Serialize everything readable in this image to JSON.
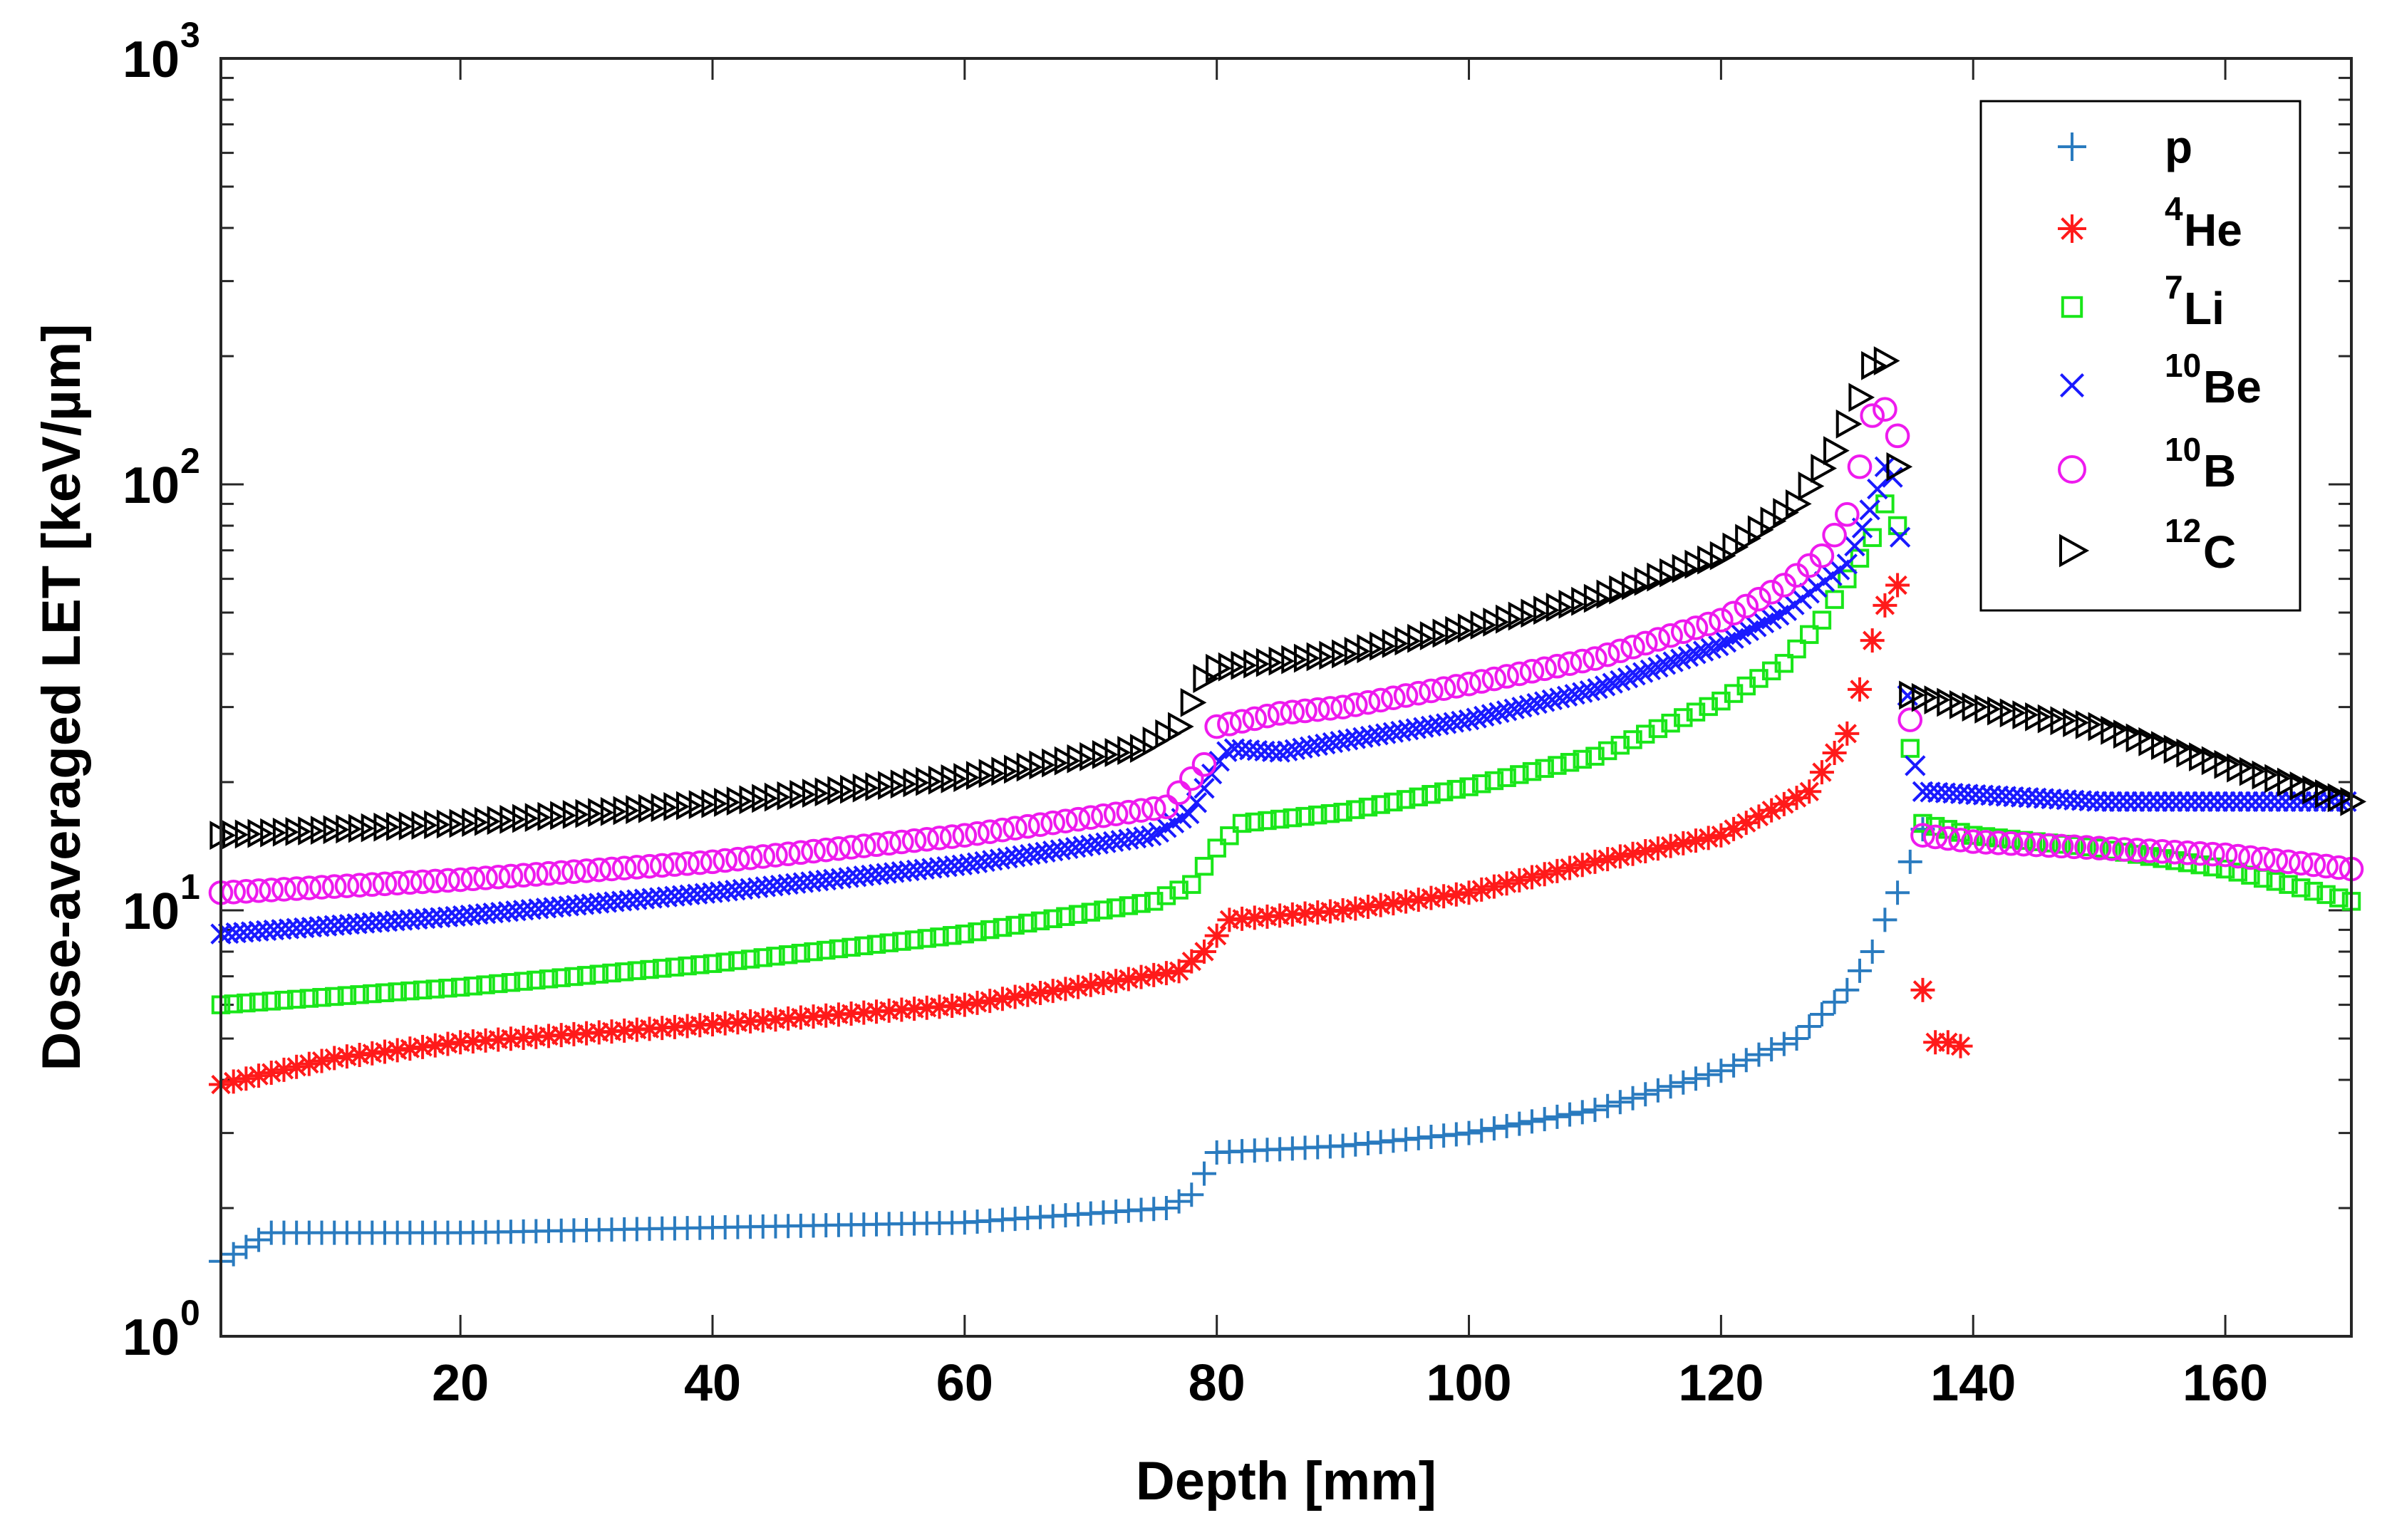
{
  "chart_data": {
    "type": "scatter",
    "title": "",
    "xlabel": "Depth [mm]",
    "ylabel": "Dose-averaged LET [keV/µm]",
    "xlim": [
      1,
      170
    ],
    "ylim": [
      1,
      1000
    ],
    "yscale": "log",
    "xticks": [
      20,
      40,
      60,
      80,
      100,
      120,
      140,
      160
    ],
    "xtick_labels": [
      "20",
      "40",
      "60",
      "80",
      "100",
      "120",
      "140",
      "160"
    ],
    "yticks": [
      {
        "value": 1,
        "base": "10",
        "exp": "0"
      },
      {
        "value": 10,
        "base": "10",
        "exp": "1"
      },
      {
        "value": 100,
        "base": "10",
        "exp": "2"
      },
      {
        "value": 1000,
        "base": "10",
        "exp": "3"
      }
    ],
    "legend_position": "top-right",
    "series": [
      {
        "name": "p",
        "mass": "",
        "element": "p",
        "color": "#2a7bbf",
        "marker": "plus",
        "x_start": 1,
        "x_step": 1,
        "anchors": [
          [
            1,
            1.5
          ],
          [
            5,
            1.75
          ],
          [
            20,
            1.75
          ],
          [
            40,
            1.8
          ],
          [
            60,
            1.85
          ],
          [
            76,
            2.0
          ],
          [
            78,
            2.15
          ],
          [
            80,
            2.7
          ],
          [
            90,
            2.8
          ],
          [
            100,
            3.0
          ],
          [
            110,
            3.4
          ],
          [
            120,
            4.2
          ],
          [
            126,
            5.0
          ],
          [
            130,
            6.5
          ],
          [
            132,
            8.0
          ],
          [
            133,
            9.5
          ],
          [
            134,
            11.0
          ],
          [
            135,
            13.0
          ]
        ],
        "extra_points": [
          [
            136,
            15.5
          ]
        ]
      },
      {
        "name": "⁴He",
        "mass": "4",
        "element": "He",
        "color": "#ff1a1a",
        "marker": "asterisk",
        "x_start": 1,
        "x_step": 1,
        "anchors": [
          [
            1,
            3.9
          ],
          [
            10,
            4.5
          ],
          [
            20,
            4.9
          ],
          [
            40,
            5.4
          ],
          [
            60,
            6.0
          ],
          [
            77,
            7.2
          ],
          [
            79,
            8.0
          ],
          [
            81,
            9.5
          ],
          [
            90,
            10.0
          ],
          [
            100,
            11.0
          ],
          [
            110,
            13.0
          ],
          [
            120,
            15.0
          ],
          [
            127,
            19.0
          ],
          [
            130,
            26.0
          ],
          [
            131,
            33.0
          ],
          [
            132,
            43.0
          ],
          [
            133,
            52.0
          ],
          [
            134,
            58.0
          ]
        ],
        "extra_points": [
          [
            136,
            6.5
          ],
          [
            137,
            4.9
          ],
          [
            138,
            4.9
          ],
          [
            139,
            4.8
          ]
        ]
      },
      {
        "name": "⁷Li",
        "mass": "7",
        "element": "Li",
        "color": "#19e619",
        "marker": "square",
        "x_start": 1,
        "x_step": 1,
        "anchors": [
          [
            1,
            6.0
          ],
          [
            20,
            6.6
          ],
          [
            40,
            7.5
          ],
          [
            60,
            8.8
          ],
          [
            75,
            10.5
          ],
          [
            78,
            11.5
          ],
          [
            80,
            14.0
          ],
          [
            82,
            16.0
          ],
          [
            90,
            17.0
          ],
          [
            100,
            19.5
          ],
          [
            110,
            23.0
          ],
          [
            120,
            31.0
          ],
          [
            125,
            38.0
          ],
          [
            128,
            48.0
          ],
          [
            130,
            60.0
          ],
          [
            132,
            75.0
          ],
          [
            133,
            90.0
          ],
          [
            134,
            80.0
          ],
          [
            135,
            24.0
          ],
          [
            136,
            16.0
          ],
          [
            140,
            15.0
          ],
          [
            150,
            14.0
          ],
          [
            160,
            12.5
          ],
          [
            165,
            11.5
          ],
          [
            170,
            10.5
          ]
        ],
        "extra_points": []
      },
      {
        "name": "¹⁰Be",
        "mass": "10",
        "element": "Be",
        "color": "#1a1aff",
        "marker": "cross",
        "x_start": 1,
        "x_step": 0.6,
        "anchors": [
          [
            1,
            8.8
          ],
          [
            20,
            9.7
          ],
          [
            40,
            11.0
          ],
          [
            60,
            12.8
          ],
          [
            75,
            15.0
          ],
          [
            78,
            17.0
          ],
          [
            80,
            22.0
          ],
          [
            81,
            24.0
          ],
          [
            85,
            23.5
          ],
          [
            90,
            25.0
          ],
          [
            100,
            28.0
          ],
          [
            110,
            33.0
          ],
          [
            120,
            42.0
          ],
          [
            125,
            50.0
          ],
          [
            130,
            65.0
          ],
          [
            132,
            90.0
          ],
          [
            133,
            110.0
          ],
          [
            134,
            100.0
          ],
          [
            135,
            24.0
          ],
          [
            136,
            19.0
          ],
          [
            150,
            18.0
          ],
          [
            170,
            18.0
          ]
        ],
        "extra_points": []
      },
      {
        "name": "¹⁰B",
        "mass": "10",
        "element": "B",
        "color": "#ee1aee",
        "marker": "circle",
        "x_start": 1,
        "x_step": 1,
        "anchors": [
          [
            1,
            11.0
          ],
          [
            20,
            11.8
          ],
          [
            40,
            13.0
          ],
          [
            60,
            15.0
          ],
          [
            76,
            17.5
          ],
          [
            79,
            22.0
          ],
          [
            80,
            27.0
          ],
          [
            85,
            29.0
          ],
          [
            90,
            30.0
          ],
          [
            100,
            34.0
          ],
          [
            110,
            39.0
          ],
          [
            120,
            48.0
          ],
          [
            125,
            58.0
          ],
          [
            128,
            68.0
          ],
          [
            130,
            85.0
          ],
          [
            131,
            110.0
          ],
          [
            132,
            145.0
          ],
          [
            133,
            150.0
          ],
          [
            134,
            130.0
          ],
          [
            135,
            28.0
          ],
          [
            136,
            15.0
          ],
          [
            140,
            14.5
          ],
          [
            150,
            14.0
          ],
          [
            160,
            13.5
          ],
          [
            165,
            13.0
          ],
          [
            170,
            12.5
          ]
        ],
        "extra_points": []
      },
      {
        "name": "¹²C",
        "mass": "12",
        "element": "C",
        "color": "#000000",
        "marker": "triangle-right",
        "x_start": 1,
        "x_step": 1,
        "anchors": [
          [
            1,
            15.0
          ],
          [
            20,
            16.0
          ],
          [
            40,
            17.8
          ],
          [
            60,
            20.5
          ],
          [
            74,
            24.0
          ],
          [
            77,
            27.0
          ],
          [
            79,
            35.0
          ],
          [
            80,
            37.0
          ],
          [
            90,
            40.0
          ],
          [
            100,
            46.0
          ],
          [
            110,
            54.0
          ],
          [
            120,
            68.0
          ],
          [
            126,
            90.0
          ],
          [
            129,
            120.0
          ],
          [
            131,
            160.0
          ],
          [
            132,
            190.0
          ],
          [
            133,
            195.0
          ],
          [
            134,
            110.0
          ],
          [
            135,
            32.0
          ],
          [
            140,
            30.0
          ],
          [
            150,
            27.0
          ],
          [
            160,
            22.0
          ],
          [
            165,
            20.0
          ],
          [
            170,
            18.0
          ]
        ],
        "extra_points": []
      }
    ]
  }
}
